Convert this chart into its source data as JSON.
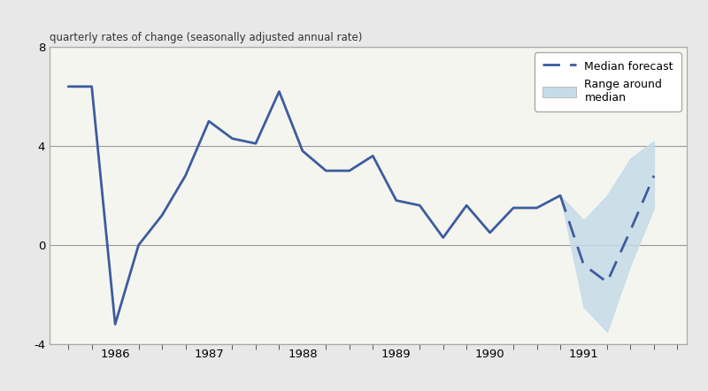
{
  "title": "quarterly rates of change (seasonally adjusted annual rate)",
  "ylim": [
    -4,
    8
  ],
  "yticks": [
    -4,
    0,
    4,
    8
  ],
  "fig_facecolor": "#e8e8e8",
  "plot_facecolor": "#f5f5f0",
  "border_color": "#aaaaaa",
  "line_color": "#3d5c9e",
  "shade_color": "#c5dce8",
  "solid_x": [
    1985.5,
    1985.75,
    1986.0,
    1986.25,
    1986.5,
    1986.75,
    1987.0,
    1987.25,
    1987.5,
    1987.75,
    1988.0,
    1988.25,
    1988.5,
    1988.75,
    1989.0,
    1989.25,
    1989.5,
    1989.75,
    1990.0,
    1990.25,
    1990.5,
    1990.75
  ],
  "solid_y": [
    6.4,
    6.4,
    -3.2,
    0.0,
    1.2,
    2.8,
    5.0,
    4.3,
    4.1,
    6.2,
    3.8,
    3.0,
    3.0,
    3.6,
    1.8,
    1.6,
    0.3,
    1.6,
    0.5,
    1.5,
    1.5,
    2.0
  ],
  "forecast_x": [
    1990.75,
    1991.0,
    1991.25,
    1991.5,
    1991.75
  ],
  "forecast_y": [
    2.0,
    -0.8,
    -1.5,
    0.6,
    2.8
  ],
  "upper_bound_x": [
    1990.75,
    1991.0,
    1991.25,
    1991.5,
    1991.75,
    1991.75
  ],
  "upper_bound_y": [
    2.0,
    1.0,
    2.0,
    3.5,
    4.2,
    4.2
  ],
  "lower_bound_y": [
    2.0,
    -2.5,
    -3.5,
    -0.8,
    1.5,
    1.5
  ],
  "xlim_left": 1985.3,
  "xlim_right": 1992.1,
  "xtick_years": [
    1986,
    1987,
    1988,
    1989,
    1990,
    1991
  ],
  "legend_label_median": "Median forecast",
  "legend_label_range": "Range around\nmedian"
}
